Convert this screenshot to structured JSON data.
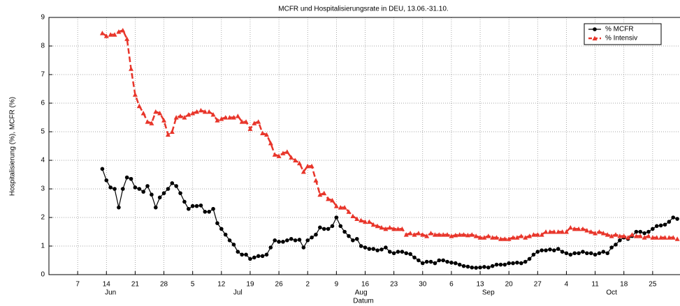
{
  "chart_data": {
    "type": "line",
    "title": "MCFR und Hospitalisierungsrate in DEU, 13.06.-31.10.",
    "x_label": "Datum",
    "y_label": "Hospitalisierung (%), MCFR (%)",
    "x": [
      "06-13",
      "06-14",
      "06-15",
      "06-16",
      "06-17",
      "06-18",
      "06-19",
      "06-20",
      "06-21",
      "06-22",
      "06-23",
      "06-24",
      "06-25",
      "06-26",
      "06-27",
      "06-28",
      "06-29",
      "06-30",
      "07-01",
      "07-02",
      "07-03",
      "07-04",
      "07-05",
      "07-06",
      "07-07",
      "07-08",
      "07-09",
      "07-10",
      "07-11",
      "07-12",
      "07-13",
      "07-14",
      "07-15",
      "07-16",
      "07-17",
      "07-18",
      "07-19",
      "07-20",
      "07-21",
      "07-22",
      "07-23",
      "07-24",
      "07-25",
      "07-26",
      "07-27",
      "07-28",
      "07-29",
      "07-30",
      "07-31",
      "08-01",
      "08-02",
      "08-03",
      "08-04",
      "08-05",
      "08-06",
      "08-07",
      "08-08",
      "08-09",
      "08-10",
      "08-11",
      "08-12",
      "08-13",
      "08-14",
      "08-15",
      "08-16",
      "08-17",
      "08-18",
      "08-19",
      "08-20",
      "08-21",
      "08-22",
      "08-23",
      "08-24",
      "08-25",
      "08-26",
      "08-27",
      "08-28",
      "08-29",
      "08-30",
      "08-31",
      "09-01",
      "09-02",
      "09-03",
      "09-04",
      "09-05",
      "09-06",
      "09-07",
      "09-08",
      "09-09",
      "09-10",
      "09-11",
      "09-12",
      "09-13",
      "09-14",
      "09-15",
      "09-16",
      "09-17",
      "09-18",
      "09-19",
      "09-20",
      "09-21",
      "09-22",
      "09-23",
      "09-24",
      "09-25",
      "09-26",
      "09-27",
      "09-28",
      "09-29",
      "09-30",
      "10-01",
      "10-02",
      "10-03",
      "10-04",
      "10-05",
      "10-06",
      "10-07",
      "10-08",
      "10-09",
      "10-10",
      "10-11",
      "10-12",
      "10-13",
      "10-14",
      "10-15",
      "10-16",
      "10-17",
      "10-18",
      "10-19",
      "10-20",
      "10-21",
      "10-22",
      "10-23",
      "10-24",
      "10-25",
      "10-26",
      "10-27",
      "10-28",
      "10-29",
      "10-30",
      "10-31"
    ],
    "series": [
      {
        "name": "% MCFR",
        "color": "#000000",
        "marker": "circle",
        "dashed": false,
        "values": [
          3.7,
          3.3,
          3.05,
          3.0,
          2.35,
          3.0,
          3.4,
          3.35,
          3.05,
          3.0,
          2.9,
          3.1,
          2.8,
          2.35,
          2.7,
          2.85,
          3.0,
          3.2,
          3.1,
          2.85,
          2.55,
          2.3,
          2.4,
          2.4,
          2.42,
          2.2,
          2.2,
          2.3,
          1.8,
          1.6,
          1.4,
          1.2,
          1.05,
          0.8,
          0.7,
          0.7,
          0.55,
          0.6,
          0.65,
          0.65,
          0.7,
          0.95,
          1.2,
          1.15,
          1.15,
          1.2,
          1.25,
          1.2,
          1.22,
          0.95,
          1.2,
          1.3,
          1.4,
          1.65,
          1.6,
          1.6,
          1.7,
          2.0,
          1.7,
          1.5,
          1.35,
          1.2,
          1.25,
          1.0,
          0.95,
          0.9,
          0.9,
          0.85,
          0.88,
          0.95,
          0.8,
          0.75,
          0.8,
          0.8,
          0.75,
          0.72,
          0.6,
          0.5,
          0.4,
          0.45,
          0.45,
          0.4,
          0.5,
          0.5,
          0.45,
          0.42,
          0.4,
          0.35,
          0.3,
          0.28,
          0.25,
          0.24,
          0.25,
          0.27,
          0.25,
          0.3,
          0.35,
          0.35,
          0.35,
          0.4,
          0.4,
          0.42,
          0.4,
          0.45,
          0.55,
          0.7,
          0.8,
          0.85,
          0.85,
          0.88,
          0.85,
          0.9,
          0.8,
          0.75,
          0.7,
          0.75,
          0.75,
          0.8,
          0.75,
          0.75,
          0.7,
          0.75,
          0.8,
          0.75,
          0.95,
          1.05,
          1.2,
          1.3,
          1.25,
          1.35,
          1.5,
          1.5,
          1.45,
          1.5,
          1.6,
          1.7,
          1.72,
          1.75,
          1.85,
          2.0,
          1.95
        ]
      },
      {
        "name": "% Intensiv",
        "color": "#e8352a",
        "marker": "triangle",
        "dashed": true,
        "values": [
          8.45,
          8.35,
          8.4,
          8.4,
          8.5,
          8.55,
          8.25,
          7.2,
          6.3,
          5.9,
          5.65,
          5.35,
          5.3,
          5.7,
          5.65,
          5.4,
          4.9,
          5.0,
          5.5,
          5.55,
          5.5,
          5.6,
          5.65,
          5.7,
          5.75,
          5.7,
          5.7,
          5.6,
          5.4,
          5.45,
          5.5,
          5.5,
          5.5,
          5.55,
          5.35,
          5.35,
          5.1,
          5.3,
          5.35,
          4.95,
          4.9,
          4.6,
          4.2,
          4.15,
          4.25,
          4.3,
          4.1,
          4.0,
          3.9,
          3.6,
          3.8,
          3.8,
          3.3,
          2.8,
          2.85,
          2.65,
          2.6,
          2.4,
          2.35,
          2.35,
          2.2,
          2.05,
          1.95,
          1.9,
          1.85,
          1.85,
          1.75,
          1.7,
          1.65,
          1.6,
          1.65,
          1.6,
          1.6,
          1.6,
          1.4,
          1.45,
          1.4,
          1.45,
          1.4,
          1.35,
          1.45,
          1.4,
          1.4,
          1.4,
          1.4,
          1.35,
          1.38,
          1.4,
          1.4,
          1.38,
          1.4,
          1.35,
          1.3,
          1.3,
          1.35,
          1.3,
          1.3,
          1.25,
          1.25,
          1.25,
          1.3,
          1.3,
          1.35,
          1.3,
          1.35,
          1.4,
          1.4,
          1.4,
          1.5,
          1.5,
          1.5,
          1.5,
          1.5,
          1.5,
          1.65,
          1.6,
          1.6,
          1.6,
          1.55,
          1.5,
          1.45,
          1.5,
          1.45,
          1.4,
          1.35,
          1.4,
          1.35,
          1.35,
          1.3,
          1.4,
          1.35,
          1.35,
          1.3,
          1.35,
          1.3,
          1.3,
          1.3,
          1.3,
          1.3,
          1.3,
          1.25
        ]
      }
    ],
    "xlim": [
      "05-31",
      "11-01"
    ],
    "xticks": [
      {
        "value": "06-07",
        "label": "7"
      },
      {
        "value": "06-14",
        "label": "14"
      },
      {
        "value": "06-21",
        "label": "21"
      },
      {
        "value": "06-28",
        "label": "28"
      },
      {
        "value": "07-05",
        "label": "5"
      },
      {
        "value": "07-12",
        "label": "12"
      },
      {
        "value": "07-19",
        "label": "19"
      },
      {
        "value": "07-26",
        "label": "26"
      },
      {
        "value": "08-02",
        "label": "2"
      },
      {
        "value": "08-09",
        "label": "9"
      },
      {
        "value": "08-16",
        "label": "16"
      },
      {
        "value": "08-23",
        "label": "23"
      },
      {
        "value": "08-30",
        "label": "30"
      },
      {
        "value": "09-06",
        "label": "6"
      },
      {
        "value": "09-13",
        "label": "13"
      },
      {
        "value": "09-20",
        "label": "20"
      },
      {
        "value": "09-27",
        "label": "27"
      },
      {
        "value": "10-04",
        "label": "4"
      },
      {
        "value": "10-11",
        "label": "11"
      },
      {
        "value": "10-18",
        "label": "18"
      },
      {
        "value": "10-25",
        "label": "25"
      }
    ],
    "month_labels": [
      {
        "value": "06-15",
        "label": "Jun"
      },
      {
        "value": "07-16",
        "label": "Jul"
      },
      {
        "value": "08-15",
        "label": "Aug"
      },
      {
        "value": "09-15",
        "label": "Sep"
      },
      {
        "value": "10-15",
        "label": "Oct"
      }
    ],
    "ylim": [
      0,
      9
    ],
    "yticks": [
      0,
      1,
      2,
      3,
      4,
      5,
      6,
      7,
      8,
      9
    ],
    "grid": true,
    "legend": "upper right"
  }
}
